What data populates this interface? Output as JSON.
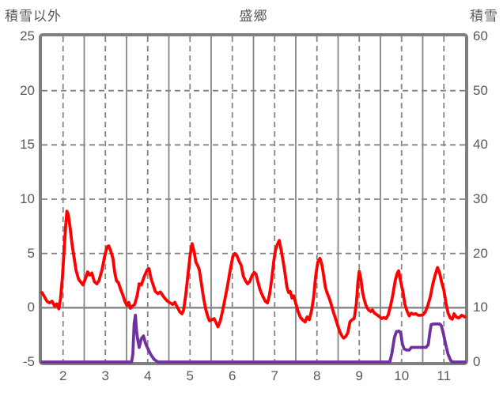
{
  "header": {
    "left_axis_title": "積雪以外",
    "chart_title": "盛郷",
    "right_axis_title": "積雪"
  },
  "chart_data": {
    "type": "line",
    "title": "盛郷",
    "grid": "on",
    "legend": "none",
    "colors": {
      "temperature_line": "#fe0000",
      "snow_line": "#7030a0",
      "grid": "#858585",
      "border": "#7f7f7f",
      "zero_line": "#7f7f7f",
      "text": "#595959",
      "background": "#ffffff"
    },
    "left_axis": {
      "title": "積雪以外",
      "min": -5,
      "max": 25,
      "step": 5,
      "ticks": [
        25,
        20,
        15,
        10,
        5,
        0,
        -5
      ]
    },
    "right_axis": {
      "title": "積雪",
      "min": 0,
      "max": 60,
      "step": 10,
      "ticks": [
        60,
        50,
        40,
        30,
        20,
        10,
        0
      ]
    },
    "x_axis": {
      "labels": [
        "2",
        "3",
        "4",
        "5",
        "6",
        "7",
        "8",
        "9",
        "10",
        "11"
      ],
      "day_start": 2,
      "day_end": 12,
      "solid_gridlines_at_day_boundaries": true,
      "dashed_gridlines_at_noon": true
    },
    "horizontal_gridlines": {
      "dashed_at_left_values": [
        20,
        15,
        10,
        5
      ],
      "solid_at_left_value": 0
    },
    "series": [
      {
        "name": "積雪以外",
        "axis": "left",
        "color": "#fe0000",
        "points": [
          [
            2.0,
            1.4
          ],
          [
            2.06,
            1.0
          ],
          [
            2.12,
            0.6
          ],
          [
            2.18,
            0.45
          ],
          [
            2.24,
            0.6
          ],
          [
            2.3,
            0.15
          ],
          [
            2.35,
            0.35
          ],
          [
            2.4,
            -0.1
          ],
          [
            2.44,
            0.8
          ],
          [
            2.48,
            2.6
          ],
          [
            2.52,
            5.0
          ],
          [
            2.56,
            7.5
          ],
          [
            2.59,
            8.9
          ],
          [
            2.62,
            8.6
          ],
          [
            2.66,
            7.6
          ],
          [
            2.71,
            5.9
          ],
          [
            2.76,
            4.6
          ],
          [
            2.81,
            3.4
          ],
          [
            2.87,
            2.6
          ],
          [
            2.93,
            2.3
          ],
          [
            2.97,
            2.1
          ],
          [
            3.03,
            2.7
          ],
          [
            3.08,
            3.3
          ],
          [
            3.13,
            3.0
          ],
          [
            3.18,
            3.2
          ],
          [
            3.24,
            2.4
          ],
          [
            3.3,
            2.2
          ],
          [
            3.35,
            2.5
          ],
          [
            3.42,
            3.5
          ],
          [
            3.48,
            4.7
          ],
          [
            3.54,
            5.6
          ],
          [
            3.58,
            5.7
          ],
          [
            3.63,
            5.2
          ],
          [
            3.68,
            4.5
          ],
          [
            3.72,
            3.3
          ],
          [
            3.76,
            2.5
          ],
          [
            3.81,
            2.3
          ],
          [
            3.86,
            1.7
          ],
          [
            3.91,
            1.2
          ],
          [
            3.96,
            0.6
          ],
          [
            4.01,
            0.2
          ],
          [
            4.05,
            0.5
          ],
          [
            4.09,
            -0.05
          ],
          [
            4.14,
            0.15
          ],
          [
            4.19,
            0.3
          ],
          [
            4.25,
            1.1
          ],
          [
            4.3,
            2.2
          ],
          [
            4.35,
            2.1
          ],
          [
            4.42,
            2.9
          ],
          [
            4.49,
            3.5
          ],
          [
            4.53,
            3.6
          ],
          [
            4.58,
            2.7
          ],
          [
            4.62,
            2.2
          ],
          [
            4.68,
            1.5
          ],
          [
            4.74,
            1.3
          ],
          [
            4.8,
            1.45
          ],
          [
            4.86,
            1.1
          ],
          [
            4.92,
            0.8
          ],
          [
            4.97,
            0.6
          ],
          [
            5.03,
            0.45
          ],
          [
            5.09,
            0.3
          ],
          [
            5.14,
            0.5
          ],
          [
            5.2,
            0.05
          ],
          [
            5.26,
            -0.4
          ],
          [
            5.31,
            -0.55
          ],
          [
            5.35,
            -0.2
          ],
          [
            5.4,
            1.2
          ],
          [
            5.45,
            3.0
          ],
          [
            5.5,
            4.8
          ],
          [
            5.55,
            5.9
          ],
          [
            5.6,
            5.1
          ],
          [
            5.64,
            4.2
          ],
          [
            5.68,
            3.9
          ],
          [
            5.72,
            3.5
          ],
          [
            5.77,
            2.2
          ],
          [
            5.82,
            0.9
          ],
          [
            5.87,
            -0.1
          ],
          [
            5.92,
            -0.8
          ],
          [
            5.96,
            -1.2
          ],
          [
            6.02,
            -1.1
          ],
          [
            6.07,
            -1.0
          ],
          [
            6.12,
            -1.4
          ],
          [
            6.16,
            -1.75
          ],
          [
            6.21,
            -1.3
          ],
          [
            6.27,
            -0.3
          ],
          [
            6.33,
            0.9
          ],
          [
            6.39,
            2.1
          ],
          [
            6.45,
            3.5
          ],
          [
            6.51,
            4.7
          ],
          [
            6.56,
            5.0
          ],
          [
            6.61,
            4.8
          ],
          [
            6.66,
            4.3
          ],
          [
            6.71,
            3.9
          ],
          [
            6.76,
            2.9
          ],
          [
            6.81,
            2.5
          ],
          [
            6.86,
            2.2
          ],
          [
            6.91,
            2.4
          ],
          [
            6.97,
            3.0
          ],
          [
            7.02,
            3.25
          ],
          [
            7.06,
            3.1
          ],
          [
            7.11,
            2.3
          ],
          [
            7.16,
            1.6
          ],
          [
            7.22,
            1.05
          ],
          [
            7.28,
            0.6
          ],
          [
            7.33,
            0.45
          ],
          [
            7.38,
            1.2
          ],
          [
            7.43,
            2.6
          ],
          [
            7.48,
            4.3
          ],
          [
            7.52,
            5.3
          ],
          [
            7.56,
            5.8
          ],
          [
            7.61,
            6.2
          ],
          [
            7.66,
            5.2
          ],
          [
            7.7,
            4.3
          ],
          [
            7.74,
            3.3
          ],
          [
            7.79,
            1.9
          ],
          [
            7.83,
            1.4
          ],
          [
            7.87,
            1.5
          ],
          [
            7.91,
            0.9
          ],
          [
            7.95,
            1.1
          ],
          [
            8.0,
            0.4
          ],
          [
            8.05,
            -0.3
          ],
          [
            8.11,
            -0.9
          ],
          [
            8.17,
            -1.15
          ],
          [
            8.22,
            -1.3
          ],
          [
            8.27,
            -0.85
          ],
          [
            8.32,
            -1.1
          ],
          [
            8.37,
            -0.3
          ],
          [
            8.42,
            0.9
          ],
          [
            8.47,
            2.9
          ],
          [
            8.52,
            4.2
          ],
          [
            8.57,
            4.55
          ],
          [
            8.62,
            3.9
          ],
          [
            8.66,
            2.9
          ],
          [
            8.7,
            1.9
          ],
          [
            8.74,
            1.35
          ],
          [
            8.78,
            1.0
          ],
          [
            8.83,
            0.4
          ],
          [
            8.88,
            -0.3
          ],
          [
            8.93,
            -0.9
          ],
          [
            8.98,
            -1.5
          ],
          [
            9.04,
            -2.2
          ],
          [
            9.09,
            -2.6
          ],
          [
            9.13,
            -2.8
          ],
          [
            9.18,
            -2.65
          ],
          [
            9.23,
            -2.3
          ],
          [
            9.28,
            -1.3
          ],
          [
            9.33,
            -1.1
          ],
          [
            9.38,
            -1.0
          ],
          [
            9.43,
            0.3
          ],
          [
            9.47,
            2.4
          ],
          [
            9.5,
            3.35
          ],
          [
            9.54,
            2.6
          ],
          [
            9.58,
            1.4
          ],
          [
            9.62,
            0.7
          ],
          [
            9.67,
            0.1
          ],
          [
            9.72,
            -0.2
          ],
          [
            9.77,
            -0.35
          ],
          [
            9.81,
            -0.2
          ],
          [
            9.86,
            -0.5
          ],
          [
            9.92,
            -0.65
          ],
          [
            9.97,
            -0.8
          ],
          [
            10.03,
            -1.0
          ],
          [
            10.08,
            -0.9
          ],
          [
            10.13,
            -1.0
          ],
          [
            10.18,
            -0.7
          ],
          [
            10.23,
            0.0
          ],
          [
            10.29,
            1.1
          ],
          [
            10.35,
            2.5
          ],
          [
            10.4,
            3.2
          ],
          [
            10.43,
            3.4
          ],
          [
            10.48,
            2.4
          ],
          [
            10.53,
            1.5
          ],
          [
            10.58,
            0.3
          ],
          [
            10.63,
            -0.3
          ],
          [
            10.68,
            -0.75
          ],
          [
            10.73,
            -0.5
          ],
          [
            10.78,
            -0.6
          ],
          [
            10.84,
            -0.55
          ],
          [
            10.89,
            -0.7
          ],
          [
            10.95,
            -0.7
          ],
          [
            11.0,
            -0.65
          ],
          [
            11.06,
            -0.4
          ],
          [
            11.12,
            0.2
          ],
          [
            11.18,
            1.0
          ],
          [
            11.24,
            2.2
          ],
          [
            11.3,
            3.1
          ],
          [
            11.35,
            3.7
          ],
          [
            11.4,
            3.2
          ],
          [
            11.45,
            2.3
          ],
          [
            11.5,
            1.6
          ],
          [
            11.55,
            0.4
          ],
          [
            11.6,
            -0.5
          ],
          [
            11.65,
            -0.95
          ],
          [
            11.7,
            -1.05
          ],
          [
            11.74,
            -0.55
          ],
          [
            11.79,
            -0.85
          ],
          [
            11.85,
            -0.95
          ],
          [
            11.92,
            -0.7
          ],
          [
            12.0,
            -0.85
          ]
        ]
      },
      {
        "name": "積雪",
        "axis": "right",
        "color": "#7030a0",
        "points": [
          [
            2.0,
            0
          ],
          [
            4.12,
            0
          ],
          [
            4.15,
            1.5
          ],
          [
            4.18,
            7.0
          ],
          [
            4.21,
            8.6
          ],
          [
            4.24,
            5.5
          ],
          [
            4.27,
            3.9
          ],
          [
            4.3,
            2.7
          ],
          [
            4.35,
            4.3
          ],
          [
            4.4,
            4.8
          ],
          [
            4.45,
            3.4
          ],
          [
            4.52,
            2.2
          ],
          [
            4.58,
            1.3
          ],
          [
            4.65,
            0.5
          ],
          [
            4.73,
            0.05
          ],
          [
            4.78,
            0
          ],
          [
            10.22,
            0
          ],
          [
            10.27,
            1.5
          ],
          [
            10.33,
            4.5
          ],
          [
            10.38,
            5.6
          ],
          [
            10.44,
            5.7
          ],
          [
            10.48,
            5.3
          ],
          [
            10.52,
            3.3
          ],
          [
            10.56,
            2.4
          ],
          [
            10.62,
            2.2
          ],
          [
            10.68,
            2.2
          ],
          [
            10.73,
            2.7
          ],
          [
            10.8,
            2.7
          ],
          [
            10.9,
            2.7
          ],
          [
            11.0,
            2.7
          ],
          [
            11.08,
            2.7
          ],
          [
            11.13,
            3.2
          ],
          [
            11.17,
            5.5
          ],
          [
            11.2,
            6.9
          ],
          [
            11.26,
            7.0
          ],
          [
            11.33,
            7.0
          ],
          [
            11.4,
            7.0
          ],
          [
            11.44,
            6.7
          ],
          [
            11.49,
            5.2
          ],
          [
            11.54,
            3.3
          ],
          [
            11.6,
            1.4
          ],
          [
            11.66,
            0.3
          ],
          [
            11.7,
            0
          ],
          [
            12.0,
            0
          ]
        ]
      }
    ]
  }
}
